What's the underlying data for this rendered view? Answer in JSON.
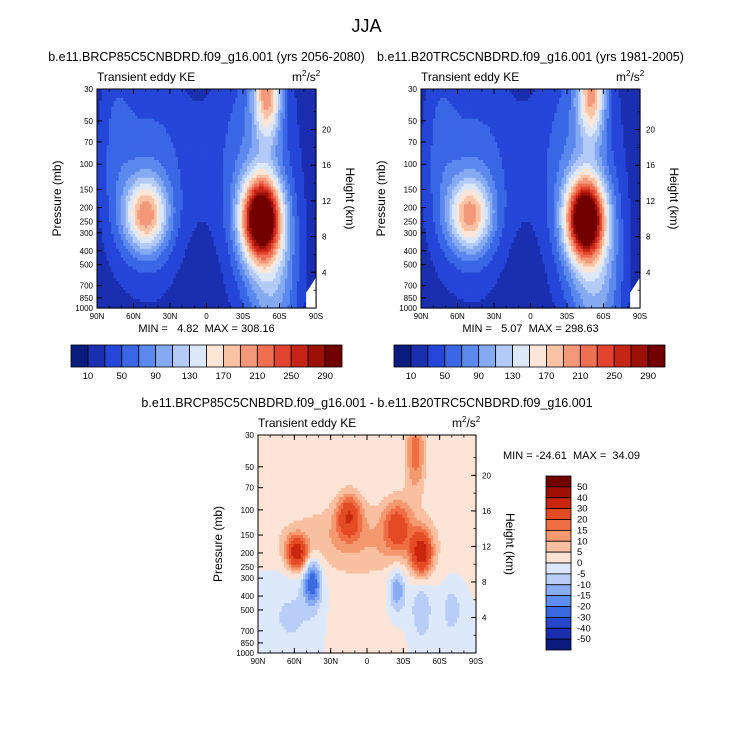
{
  "figure": {
    "title": "JJA",
    "units_base": "m",
    "units_exp1": "2",
    "units_mid": "/s",
    "units_exp2": "2"
  },
  "chart_data": [
    {
      "type": "heatmap",
      "panel": "top-left",
      "title": "b.e11.BRCP85C5CNBDRD.f09_g16.001 (yrs 2056-2080)",
      "left_string": "Transient eddy KE",
      "xlabel": "",
      "ylabel": "Pressure (mb)",
      "y2label": "Height (km)",
      "x_ticks": [
        "90N",
        "60N",
        "30N",
        "0",
        "30S",
        "60S",
        "90S"
      ],
      "y_ticks": [
        "30",
        "50",
        "70",
        "100",
        "150",
        "200",
        "250",
        "300",
        "400",
        "500",
        "700",
        "850",
        "1000"
      ],
      "y2_ticks": [
        "20",
        "16",
        "12",
        "8",
        "4"
      ],
      "min_label": "MIN =   4.82  MAX = 308.16",
      "min": 4.82,
      "max": 308.16,
      "features": [
        {
          "name": "SH jet",
          "lat": -45,
          "p": 230,
          "value": 305
        },
        {
          "name": "NH jet",
          "lat": 50,
          "p": 230,
          "value": 160
        },
        {
          "name": "SH stratospheric jet",
          "lat": -50,
          "p": 30,
          "value": 160
        },
        {
          "name": "tropical minimum",
          "lat": 5,
          "p": 600,
          "value": 5
        }
      ],
      "colorbar_labels": [
        "10",
        "50",
        "90",
        "130",
        "170",
        "210",
        "250",
        "290"
      ],
      "levels": [
        10,
        30,
        50,
        70,
        90,
        110,
        130,
        150,
        170,
        190,
        210,
        230,
        250,
        270,
        290
      ]
    },
    {
      "type": "heatmap",
      "panel": "top-right",
      "title": "b.e11.B20TRC5CNBDRD.f09_g16.001 (yrs 1981-2005)",
      "left_string": "Transient eddy KE",
      "xlabel": "",
      "ylabel": "Pressure (mb)",
      "y2label": "Height (km)",
      "x_ticks": [
        "90N",
        "60N",
        "30N",
        "0",
        "30S",
        "60S",
        "90S"
      ],
      "y_ticks": [
        "30",
        "50",
        "70",
        "100",
        "150",
        "200",
        "250",
        "300",
        "400",
        "500",
        "700",
        "850",
        "1000"
      ],
      "y2_ticks": [
        "20",
        "16",
        "12",
        "8",
        "4"
      ],
      "min_label": "MIN =   5.07  MAX = 298.63",
      "min": 5.07,
      "max": 298.63,
      "features": [
        {
          "name": "SH jet",
          "lat": -45,
          "p": 230,
          "value": 298
        },
        {
          "name": "NH jet",
          "lat": 50,
          "p": 230,
          "value": 150
        },
        {
          "name": "SH stratospheric jet",
          "lat": -50,
          "p": 30,
          "value": 150
        },
        {
          "name": "tropical minimum",
          "lat": 5,
          "p": 600,
          "value": 5
        }
      ],
      "colorbar_labels": [
        "10",
        "50",
        "90",
        "130",
        "170",
        "210",
        "250",
        "290"
      ],
      "levels": [
        10,
        30,
        50,
        70,
        90,
        110,
        130,
        150,
        170,
        190,
        210,
        230,
        250,
        270,
        290
      ]
    },
    {
      "type": "heatmap",
      "panel": "bottom",
      "title": "b.e11.BRCP85C5CNBDRD.f09_g16.001 - b.e11.B20TRC5CNBDRD.f09_g16.001",
      "left_string": "Transient eddy KE",
      "xlabel": "",
      "ylabel": "Pressure (mb)",
      "y2label": "Height (km)",
      "x_ticks": [
        "90N",
        "60N",
        "30N",
        "0",
        "30S",
        "60S",
        "90S"
      ],
      "y_ticks": [
        "30",
        "50",
        "70",
        "100",
        "150",
        "200",
        "250",
        "300",
        "400",
        "500",
        "700",
        "850",
        "1000"
      ],
      "y2_ticks": [
        "20",
        "16",
        "12",
        "8",
        "4"
      ],
      "min_label": "MIN = -24.61  MAX =  34.09",
      "min": -24.61,
      "max": 34.09,
      "features": [
        {
          "name": "NH jet increase",
          "lat": 55,
          "p": 200,
          "value": 34
        },
        {
          "name": "SH jet increase",
          "lat": -45,
          "p": 200,
          "value": 34
        },
        {
          "name": "subtropical upper increase",
          "lat": 20,
          "p": 100,
          "value": 25
        },
        {
          "name": "NH mid-level decrease",
          "lat": 40,
          "p": 320,
          "value": -25
        },
        {
          "name": "SH mid-level decrease",
          "lat": -25,
          "p": 350,
          "value": -15
        }
      ],
      "colorbar_labels": [
        "50",
        "40",
        "30",
        "20",
        "15",
        "10",
        "5",
        "0",
        "-5",
        "-10",
        "-15",
        "-20",
        "-30",
        "-40",
        "-50"
      ],
      "levels": [
        -50,
        -40,
        -30,
        -20,
        -15,
        -10,
        -5,
        0,
        5,
        10,
        15,
        20,
        30,
        40,
        50
      ]
    }
  ],
  "colors": {
    "seq": [
      "#0a1a7d",
      "#1a2fb0",
      "#2546d8",
      "#3a67e6",
      "#5c89ee",
      "#85aaf2",
      "#b3cbf6",
      "#dce8f8",
      "#fce6d8",
      "#f8c3a5",
      "#f3997a",
      "#ee6f52",
      "#e24430",
      "#c52416",
      "#9d1008",
      "#720000"
    ],
    "div": [
      "#0a1a7d",
      "#1a2fb0",
      "#2547c9",
      "#3b6ae0",
      "#5e8ded",
      "#89adf3",
      "#b8cef7",
      "#dde9fa",
      "#fbe4d5",
      "#f8c0a0",
      "#f4996f",
      "#ef6f45",
      "#e44a24",
      "#c9260e",
      "#9e1006",
      "#730000"
    ]
  }
}
